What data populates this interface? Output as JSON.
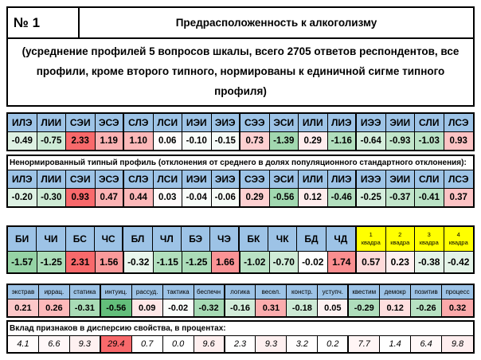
{
  "header": {
    "number": "№ 1",
    "title": "Предрасположенность к алкоголизму"
  },
  "subtitle": "(усреднение профилей 5 вопросов шкалы, всего 2705 ответов респондентов, все профили, кроме второго типного, нормированы к единичной сигме типного профиля)",
  "colors": {
    "header_blue": "#9DC3E6",
    "quadra_yellow": "#FFFF00",
    "heat_positive_max": "#F8696B",
    "heat_negative_max": "#63BE7B"
  },
  "chart_data": {
    "type": "heatmap",
    "title": "Предрасположенность к алкоголизму",
    "sections": [
      {
        "categories": [
          "ИЛЭ",
          "ЛИИ",
          "СЭИ",
          "ЭСЭ",
          "СЛЭ",
          "ЛСИ",
          "ИЭИ",
          "ЭИЭ",
          "СЭЭ",
          "ЭСИ",
          "ИЛИ",
          "ЛИЭ",
          "ИЭЭ",
          "ЭИИ",
          "СЛИ",
          "ЛСЭ"
        ],
        "values": [
          "-0.49",
          "-0.75",
          "2.33",
          "1.19",
          "1.10",
          "0.06",
          "-0.10",
          "-0.15",
          "0.73",
          "-1.39",
          "0.29",
          "-1.16",
          "-0.64",
          "-0.93",
          "-1.03",
          "0.93"
        ]
      },
      {
        "label": "Ненормированный типный профиль (отклонения от среднего  в долях популяционного стандартного отклонения):",
        "categories": [
          "ИЛЭ",
          "ЛИИ",
          "СЭИ",
          "ЭСЭ",
          "СЛЭ",
          "ЛСИ",
          "ИЭИ",
          "ЭИЭ",
          "СЭЭ",
          "ЭСИ",
          "ИЛИ",
          "ЛИЭ",
          "ИЭЭ",
          "ЭИИ",
          "СЛИ",
          "ЛСЭ"
        ],
        "values": [
          "-0.20",
          "-0.30",
          "0.93",
          "0.47",
          "0.44",
          "0.03",
          "-0.04",
          "-0.06",
          "0.29",
          "-0.56",
          "0.12",
          "-0.46",
          "-0.25",
          "-0.37",
          "-0.41",
          "0.37"
        ]
      },
      {
        "categories_aspects": [
          "БИ",
          "ЧИ",
          "БС",
          "ЧС",
          "БЛ",
          "ЧЛ",
          "БЭ",
          "ЧЭ",
          "БК",
          "ЧК",
          "БД",
          "ЧД"
        ],
        "categories_quadras": [
          "1\nквадра",
          "2\nквадра",
          "3\nквадра",
          "4\nквадра"
        ],
        "values": [
          "-1.57",
          "-1.25",
          "2.31",
          "1.56",
          "-0.32",
          "-1.15",
          "-1.25",
          "1.66",
          "-1.02",
          "-0.70",
          "-0.02",
          "1.74",
          "0.57",
          "0.23",
          "-0.38",
          "-0.42"
        ]
      },
      {
        "categories": [
          "экстрав",
          "иррац.",
          "статика",
          "интуиц.",
          "рассуд.",
          "тактика",
          "беспечн",
          "логика",
          "весел.",
          "констр.",
          "уступч.",
          "квестим",
          "демокр",
          "позитив",
          "процесс"
        ],
        "values": [
          "0.21",
          "0.26",
          "-0.31",
          "-0.56",
          "0.09",
          "-0.02",
          "-0.32",
          "-0.16",
          "0.31",
          "-0.18",
          "0.05",
          "-0.29",
          "0.12",
          "-0.26",
          "0.32"
        ]
      },
      {
        "label": "Вклад признаков в дисперсию свойства, в процентах:",
        "values": [
          "4.1",
          "6.6",
          "9.3",
          "29.4",
          "0.7",
          "0.0",
          "9.6",
          "2.3",
          "9.3",
          "3.2",
          "0.2",
          "7.7",
          "1.4",
          "6.4",
          "9.8"
        ]
      }
    ]
  }
}
